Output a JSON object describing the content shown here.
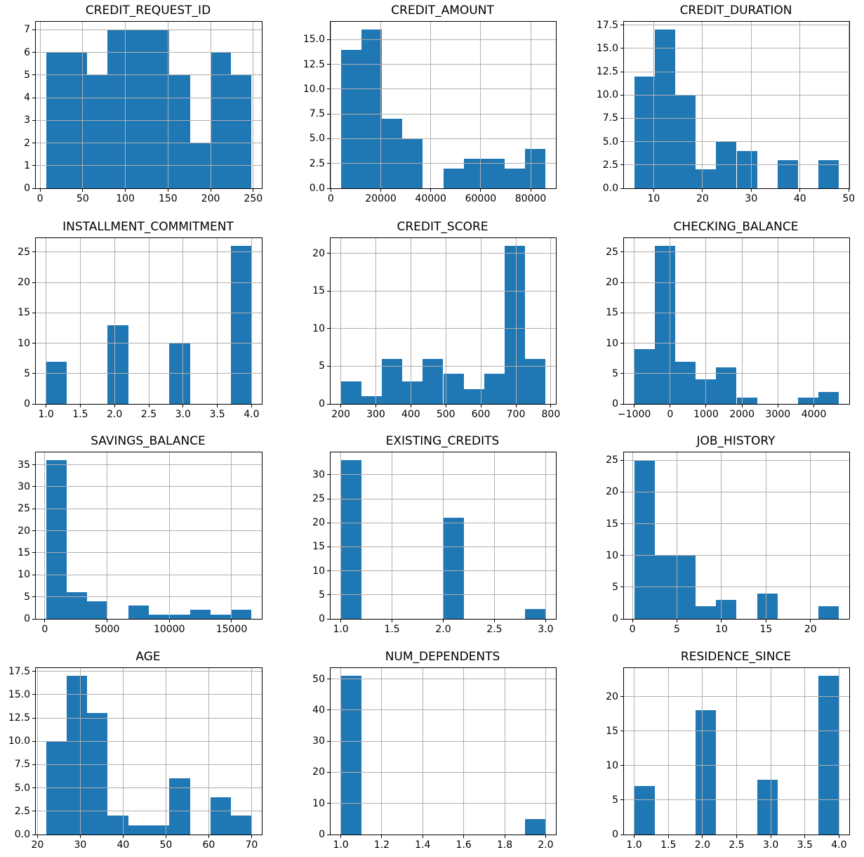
{
  "figure": {
    "background_color": "#ffffff",
    "bar_color": "#1f77b4",
    "grid_color": "#b0b0b0",
    "spine_color": "#000000",
    "text_color": "#000000",
    "grid": "on",
    "layout": "4 rows x 3 columns of histograms"
  },
  "chart_data": [
    {
      "type": "bar",
      "subtype": "histogram",
      "title": "CREDIT_REQUEST_ID",
      "bin_start": 7,
      "bin_width": 24.1,
      "counts": [
        6,
        6,
        5,
        7,
        7,
        7,
        5,
        2,
        6,
        5
      ],
      "xlim": [
        -5.05,
        260.05
      ],
      "ylim": [
        0,
        7.35
      ],
      "xticks": [
        {
          "v": 0,
          "label": "0"
        },
        {
          "v": 50,
          "label": "50"
        },
        {
          "v": 100,
          "label": "100"
        },
        {
          "v": 150,
          "label": "150"
        },
        {
          "v": 200,
          "label": "200"
        },
        {
          "v": 250,
          "label": "250"
        }
      ],
      "yticks": [
        {
          "v": 0,
          "label": "0"
        },
        {
          "v": 1,
          "label": "1"
        },
        {
          "v": 2,
          "label": "2"
        },
        {
          "v": 3,
          "label": "3"
        },
        {
          "v": 4,
          "label": "4"
        },
        {
          "v": 5,
          "label": "5"
        },
        {
          "v": 6,
          "label": "6"
        },
        {
          "v": 7,
          "label": "7"
        }
      ]
    },
    {
      "type": "bar",
      "subtype": "histogram",
      "title": "CREDIT_AMOUNT",
      "bin_start": 4000,
      "bin_width": 8200,
      "counts": [
        14,
        16,
        7,
        5,
        0,
        2,
        3,
        3,
        2,
        4
      ],
      "xlim": [
        -100,
        90100
      ],
      "ylim": [
        0,
        16.8
      ],
      "xticks": [
        {
          "v": 0,
          "label": "0"
        },
        {
          "v": 20000,
          "label": "20000"
        },
        {
          "v": 40000,
          "label": "40000"
        },
        {
          "v": 60000,
          "label": "60000"
        },
        {
          "v": 80000,
          "label": "80000"
        }
      ],
      "yticks": [
        {
          "v": 0,
          "label": "0.0"
        },
        {
          "v": 2.5,
          "label": "2.5"
        },
        {
          "v": 5,
          "label": "5.0"
        },
        {
          "v": 7.5,
          "label": "7.5"
        },
        {
          "v": 10,
          "label": "10.0"
        },
        {
          "v": 12.5,
          "label": "12.5"
        },
        {
          "v": 15,
          "label": "15.0"
        }
      ]
    },
    {
      "type": "bar",
      "subtype": "histogram",
      "title": "CREDIT_DURATION",
      "bin_start": 6,
      "bin_width": 4.2,
      "counts": [
        12,
        17,
        10,
        2,
        5,
        4,
        0,
        3,
        0,
        3
      ],
      "xlim": [
        3.9,
        50.1
      ],
      "ylim": [
        0,
        17.85
      ],
      "xticks": [
        {
          "v": 10,
          "label": "10"
        },
        {
          "v": 20,
          "label": "20"
        },
        {
          "v": 30,
          "label": "30"
        },
        {
          "v": 40,
          "label": "40"
        },
        {
          "v": 50,
          "label": "50"
        }
      ],
      "yticks": [
        {
          "v": 0,
          "label": "0.0"
        },
        {
          "v": 2.5,
          "label": "2.5"
        },
        {
          "v": 5,
          "label": "5.0"
        },
        {
          "v": 7.5,
          "label": "7.5"
        },
        {
          "v": 10,
          "label": "10.0"
        },
        {
          "v": 12.5,
          "label": "12.5"
        },
        {
          "v": 15,
          "label": "15.0"
        },
        {
          "v": 17.5,
          "label": "17.5"
        }
      ]
    },
    {
      "type": "bar",
      "subtype": "histogram",
      "title": "INSTALLMENT_COMMITMENT",
      "bin_start": 1,
      "bin_width": 0.3,
      "counts": [
        7,
        0,
        0,
        13,
        0,
        0,
        10,
        0,
        0,
        26
      ],
      "xlim": [
        0.85,
        4.15
      ],
      "ylim": [
        0,
        27.3
      ],
      "xticks": [
        {
          "v": 1.0,
          "label": "1.0"
        },
        {
          "v": 1.5,
          "label": "1.5"
        },
        {
          "v": 2.0,
          "label": "2.0"
        },
        {
          "v": 2.5,
          "label": "2.5"
        },
        {
          "v": 3.0,
          "label": "3.0"
        },
        {
          "v": 3.5,
          "label": "3.5"
        },
        {
          "v": 4.0,
          "label": "4.0"
        }
      ],
      "yticks": [
        {
          "v": 0,
          "label": "0"
        },
        {
          "v": 5,
          "label": "5"
        },
        {
          "v": 10,
          "label": "10"
        },
        {
          "v": 15,
          "label": "15"
        },
        {
          "v": 20,
          "label": "20"
        },
        {
          "v": 25,
          "label": "25"
        }
      ]
    },
    {
      "type": "bar",
      "subtype": "histogram",
      "title": "CREDIT_SCORE",
      "bin_start": 200,
      "bin_width": 58.5,
      "counts": [
        3,
        1,
        6,
        3,
        6,
        4,
        2,
        4,
        21,
        6
      ],
      "xlim": [
        170.75,
        814.25
      ],
      "ylim": [
        0,
        22.05
      ],
      "xticks": [
        {
          "v": 200,
          "label": "200"
        },
        {
          "v": 300,
          "label": "300"
        },
        {
          "v": 400,
          "label": "400"
        },
        {
          "v": 500,
          "label": "500"
        },
        {
          "v": 600,
          "label": "600"
        },
        {
          "v": 700,
          "label": "700"
        },
        {
          "v": 800,
          "label": "800"
        }
      ],
      "yticks": [
        {
          "v": 0,
          "label": "0"
        },
        {
          "v": 5,
          "label": "5"
        },
        {
          "v": 10,
          "label": "10"
        },
        {
          "v": 15,
          "label": "15"
        },
        {
          "v": 20,
          "label": "20"
        }
      ]
    },
    {
      "type": "bar",
      "subtype": "histogram",
      "title": "CHECKING_BALANCE",
      "bin_start": -1000,
      "bin_width": 570,
      "counts": [
        9,
        26,
        7,
        4,
        6,
        1,
        0,
        0,
        1,
        2
      ],
      "xlim": [
        -1285,
        4985
      ],
      "ylim": [
        0,
        27.3
      ],
      "xticks": [
        {
          "v": -1000,
          "label": "−1000"
        },
        {
          "v": 0,
          "label": "0"
        },
        {
          "v": 1000,
          "label": "1000"
        },
        {
          "v": 2000,
          "label": "2000"
        },
        {
          "v": 3000,
          "label": "3000"
        },
        {
          "v": 4000,
          "label": "4000"
        }
      ],
      "yticks": [
        {
          "v": 0,
          "label": "0"
        },
        {
          "v": 5,
          "label": "5"
        },
        {
          "v": 10,
          "label": "10"
        },
        {
          "v": 15,
          "label": "15"
        },
        {
          "v": 20,
          "label": "20"
        },
        {
          "v": 25,
          "label": "25"
        }
      ]
    },
    {
      "type": "bar",
      "subtype": "histogram",
      "title": "SAVINGS_BALANCE",
      "bin_start": 100,
      "bin_width": 1650,
      "counts": [
        36,
        6,
        4,
        0,
        3,
        1,
        1,
        2,
        1,
        2
      ],
      "xlim": [
        -725,
        17425
      ],
      "ylim": [
        0,
        37.8
      ],
      "xticks": [
        {
          "v": 0,
          "label": "0"
        },
        {
          "v": 5000,
          "label": "5000"
        },
        {
          "v": 10000,
          "label": "10000"
        },
        {
          "v": 15000,
          "label": "15000"
        }
      ],
      "yticks": [
        {
          "v": 0,
          "label": "0"
        },
        {
          "v": 5,
          "label": "5"
        },
        {
          "v": 10,
          "label": "10"
        },
        {
          "v": 15,
          "label": "15"
        },
        {
          "v": 20,
          "label": "20"
        },
        {
          "v": 25,
          "label": "25"
        },
        {
          "v": 30,
          "label": "30"
        },
        {
          "v": 35,
          "label": "35"
        }
      ]
    },
    {
      "type": "bar",
      "subtype": "histogram",
      "title": "EXISTING_CREDITS",
      "bin_start": 1,
      "bin_width": 0.2,
      "counts": [
        33,
        0,
        0,
        0,
        0,
        21,
        0,
        0,
        0,
        2
      ],
      "xlim": [
        0.9,
        3.1
      ],
      "ylim": [
        0,
        34.65
      ],
      "xticks": [
        {
          "v": 1.0,
          "label": "1.0"
        },
        {
          "v": 1.5,
          "label": "1.5"
        },
        {
          "v": 2.0,
          "label": "2.0"
        },
        {
          "v": 2.5,
          "label": "2.5"
        },
        {
          "v": 3.0,
          "label": "3.0"
        }
      ],
      "yticks": [
        {
          "v": 0,
          "label": "0"
        },
        {
          "v": 5,
          "label": "5"
        },
        {
          "v": 10,
          "label": "10"
        },
        {
          "v": 15,
          "label": "15"
        },
        {
          "v": 20,
          "label": "20"
        },
        {
          "v": 25,
          "label": "25"
        },
        {
          "v": 30,
          "label": "30"
        }
      ]
    },
    {
      "type": "bar",
      "subtype": "histogram",
      "title": "JOB_HISTORY",
      "bin_start": 0.2,
      "bin_width": 2.3,
      "counts": [
        25,
        10,
        10,
        2,
        3,
        0,
        4,
        0,
        0,
        2
      ],
      "xlim": [
        -0.95,
        24.35
      ],
      "ylim": [
        0,
        26.25
      ],
      "xticks": [
        {
          "v": 0,
          "label": "0"
        },
        {
          "v": 5,
          "label": "5"
        },
        {
          "v": 10,
          "label": "10"
        },
        {
          "v": 15,
          "label": "15"
        },
        {
          "v": 20,
          "label": "20"
        }
      ],
      "yticks": [
        {
          "v": 0,
          "label": "0"
        },
        {
          "v": 5,
          "label": "5"
        },
        {
          "v": 10,
          "label": "10"
        },
        {
          "v": 15,
          "label": "15"
        },
        {
          "v": 20,
          "label": "20"
        },
        {
          "v": 25,
          "label": "25"
        }
      ]
    },
    {
      "type": "bar",
      "subtype": "histogram",
      "title": "AGE",
      "bin_start": 22,
      "bin_width": 4.8,
      "counts": [
        10,
        17,
        13,
        2,
        1,
        1,
        6,
        0,
        4,
        2
      ],
      "xlim": [
        19.6,
        72.4
      ],
      "ylim": [
        0,
        17.85
      ],
      "xticks": [
        {
          "v": 20,
          "label": "20"
        },
        {
          "v": 30,
          "label": "30"
        },
        {
          "v": 40,
          "label": "40"
        },
        {
          "v": 50,
          "label": "50"
        },
        {
          "v": 60,
          "label": "60"
        },
        {
          "v": 70,
          "label": "70"
        }
      ],
      "yticks": [
        {
          "v": 0,
          "label": "0.0"
        },
        {
          "v": 2.5,
          "label": "2.5"
        },
        {
          "v": 5,
          "label": "5.0"
        },
        {
          "v": 7.5,
          "label": "7.5"
        },
        {
          "v": 10,
          "label": "10.0"
        },
        {
          "v": 12.5,
          "label": "12.5"
        },
        {
          "v": 15,
          "label": "15.0"
        },
        {
          "v": 17.5,
          "label": "17.5"
        }
      ]
    },
    {
      "type": "bar",
      "subtype": "histogram",
      "title": "NUM_DEPENDENTS",
      "bin_start": 1,
      "bin_width": 0.1,
      "counts": [
        51,
        0,
        0,
        0,
        0,
        0,
        0,
        0,
        0,
        5
      ],
      "xlim": [
        0.95,
        2.05
      ],
      "ylim": [
        0,
        53.55
      ],
      "xticks": [
        {
          "v": 1.0,
          "label": "1.0"
        },
        {
          "v": 1.2,
          "label": "1.2"
        },
        {
          "v": 1.4,
          "label": "1.4"
        },
        {
          "v": 1.6,
          "label": "1.6"
        },
        {
          "v": 1.8,
          "label": "1.8"
        },
        {
          "v": 2.0,
          "label": "2.0"
        }
      ],
      "yticks": [
        {
          "v": 0,
          "label": "0"
        },
        {
          "v": 10,
          "label": "10"
        },
        {
          "v": 20,
          "label": "20"
        },
        {
          "v": 30,
          "label": "30"
        },
        {
          "v": 40,
          "label": "40"
        },
        {
          "v": 50,
          "label": "50"
        }
      ]
    },
    {
      "type": "bar",
      "subtype": "histogram",
      "title": "RESIDENCE_SINCE",
      "bin_start": 1,
      "bin_width": 0.3,
      "counts": [
        7,
        0,
        0,
        18,
        0,
        0,
        8,
        0,
        0,
        23
      ],
      "xlim": [
        0.85,
        4.15
      ],
      "ylim": [
        0,
        24.15
      ],
      "xticks": [
        {
          "v": 1.0,
          "label": "1.0"
        },
        {
          "v": 1.5,
          "label": "1.5"
        },
        {
          "v": 2.0,
          "label": "2.0"
        },
        {
          "v": 2.5,
          "label": "2.5"
        },
        {
          "v": 3.0,
          "label": "3.0"
        },
        {
          "v": 3.5,
          "label": "3.5"
        },
        {
          "v": 4.0,
          "label": "4.0"
        }
      ],
      "yticks": [
        {
          "v": 0,
          "label": "0"
        },
        {
          "v": 5,
          "label": "5"
        },
        {
          "v": 10,
          "label": "10"
        },
        {
          "v": 15,
          "label": "15"
        },
        {
          "v": 20,
          "label": "20"
        }
      ]
    }
  ]
}
